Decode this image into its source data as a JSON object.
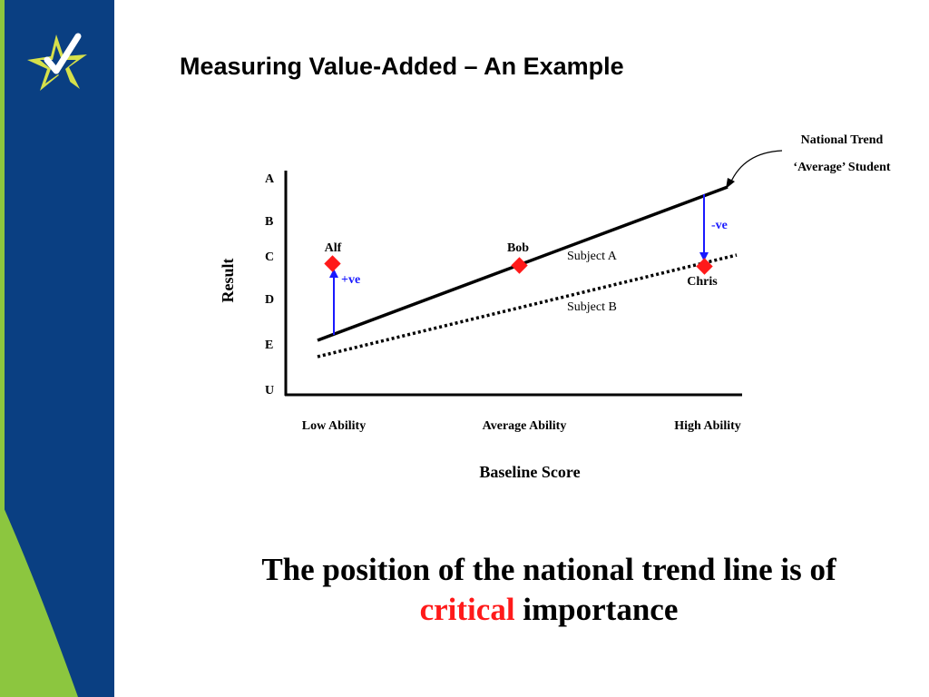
{
  "slide": {
    "title": "Measuring Value-Added – An Example",
    "colors": {
      "sidebar_blue": "#0a3f82",
      "sidebar_green": "#8cc63f",
      "logo_yellow": "#d6e04a",
      "accent_red": "#ff1a1a",
      "arrow_blue": "#1a1aff"
    },
    "logo": {
      "icon": "star-checkmark-logo"
    }
  },
  "diagram": {
    "national_trend_line1": "National Trend",
    "national_trend_line2": "‘Average’ Student",
    "y_axis_label": "Result",
    "x_axis_label": "Baseline Score",
    "grades": [
      "A",
      "B",
      "C",
      "D",
      "E",
      "U"
    ],
    "x_ticks": [
      "Low Ability",
      "Average Ability",
      "High Ability"
    ],
    "subject_a": "Subject A",
    "subject_b": "Subject B",
    "students": [
      {
        "name": "Alf"
      },
      {
        "name": "Bob"
      },
      {
        "name": "Chris"
      }
    ],
    "positive_label": "+ve",
    "negative_label": "-ve"
  },
  "caption": {
    "line1": "The position of the national trend line is of",
    "highlight": "critical",
    "line2_rest": " importance"
  }
}
